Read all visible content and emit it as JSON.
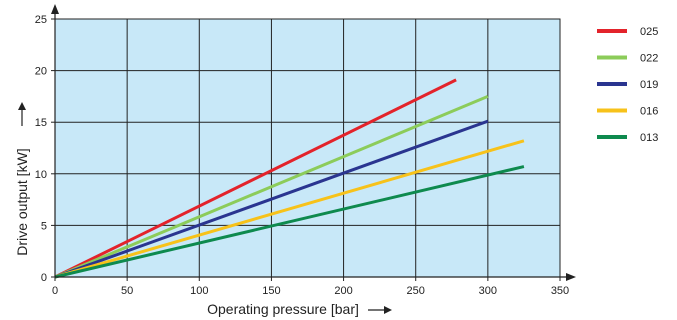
{
  "chart_data": {
    "type": "line",
    "xlabel": "Operating pressure [bar]",
    "ylabel": "Drive output [kW]",
    "xlim": [
      0,
      350
    ],
    "ylim": [
      0,
      25
    ],
    "x_ticks": [
      0,
      50,
      100,
      150,
      200,
      250,
      300,
      350
    ],
    "y_ticks": [
      0,
      5,
      10,
      15,
      20,
      25
    ],
    "grid": true,
    "legend_position": "right",
    "plot_background": "#c8e8f8",
    "series": [
      {
        "name": "025",
        "color": "#e3232b",
        "x": [
          0,
          278
        ],
        "y": [
          0,
          19.1
        ]
      },
      {
        "name": "022",
        "color": "#8ccc5a",
        "x": [
          0,
          300
        ],
        "y": [
          0,
          17.5
        ]
      },
      {
        "name": "019",
        "color": "#2a3590",
        "x": [
          0,
          300
        ],
        "y": [
          0,
          15.1
        ]
      },
      {
        "name": "016",
        "color": "#f7c21a",
        "x": [
          0,
          325
        ],
        "y": [
          0,
          13.2
        ]
      },
      {
        "name": "013",
        "color": "#0e8a4e",
        "x": [
          0,
          325
        ],
        "y": [
          0,
          10.7
        ]
      }
    ]
  }
}
